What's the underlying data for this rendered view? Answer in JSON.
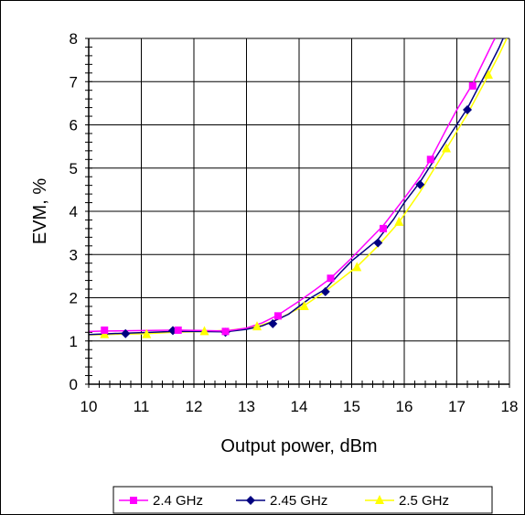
{
  "chart_data": {
    "type": "line",
    "title": "",
    "xlabel": "Output power, dBm",
    "ylabel": "EVM, %",
    "xlim": [
      10,
      18
    ],
    "ylim": [
      0,
      8
    ],
    "x_ticks": [
      "10",
      "11",
      "12",
      "13",
      "14",
      "15",
      "16",
      "17",
      "18"
    ],
    "y_ticks": [
      "0",
      "1",
      "2",
      "3",
      "4",
      "5",
      "6",
      "7",
      "8"
    ],
    "grid": true,
    "legend_position": "bottom",
    "series": [
      {
        "name": "2.4 GHz",
        "color": "#ff00ff",
        "marker": "square",
        "points": [
          [
            10.3,
            1.25
          ],
          [
            11.7,
            1.25
          ],
          [
            12.6,
            1.22
          ],
          [
            13.6,
            1.58
          ],
          [
            14.6,
            2.45
          ],
          [
            15.6,
            3.6
          ],
          [
            16.5,
            5.2
          ],
          [
            17.3,
            6.9
          ]
        ],
        "curve": [
          [
            10.0,
            1.22
          ],
          [
            10.3,
            1.23
          ],
          [
            11.0,
            1.24
          ],
          [
            11.7,
            1.25
          ],
          [
            12.2,
            1.24
          ],
          [
            12.6,
            1.23
          ],
          [
            13.0,
            1.3
          ],
          [
            13.3,
            1.42
          ],
          [
            13.6,
            1.6
          ],
          [
            14.0,
            1.92
          ],
          [
            14.3,
            2.18
          ],
          [
            14.6,
            2.45
          ],
          [
            15.0,
            2.92
          ],
          [
            15.3,
            3.3
          ],
          [
            15.6,
            3.67
          ],
          [
            16.0,
            4.3
          ],
          [
            16.3,
            4.8
          ],
          [
            16.5,
            5.2
          ],
          [
            16.8,
            5.9
          ],
          [
            17.0,
            6.35
          ],
          [
            17.3,
            6.95
          ],
          [
            17.5,
            7.45
          ],
          [
            17.7,
            7.95
          ],
          [
            17.73,
            8.0
          ]
        ]
      },
      {
        "name": "2.45 GHz",
        "color": "#000080",
        "marker": "diamond",
        "points": [
          [
            10.7,
            1.17
          ],
          [
            11.6,
            1.24
          ],
          [
            12.6,
            1.2
          ],
          [
            13.5,
            1.4
          ],
          [
            14.5,
            2.14
          ],
          [
            15.5,
            3.27
          ],
          [
            16.3,
            4.62
          ],
          [
            17.2,
            6.35
          ]
        ],
        "curve": [
          [
            10.0,
            1.15
          ],
          [
            10.7,
            1.18
          ],
          [
            11.2,
            1.2
          ],
          [
            11.6,
            1.22
          ],
          [
            12.1,
            1.22
          ],
          [
            12.6,
            1.21
          ],
          [
            13.0,
            1.27
          ],
          [
            13.3,
            1.35
          ],
          [
            13.5,
            1.45
          ],
          [
            13.8,
            1.62
          ],
          [
            14.0,
            1.8
          ],
          [
            14.2,
            1.98
          ],
          [
            14.5,
            2.2
          ],
          [
            14.8,
            2.6
          ],
          [
            15.0,
            2.85
          ],
          [
            15.2,
            3.05
          ],
          [
            15.5,
            3.35
          ],
          [
            15.8,
            3.82
          ],
          [
            16.0,
            4.2
          ],
          [
            16.3,
            4.68
          ],
          [
            16.6,
            5.25
          ],
          [
            16.9,
            5.82
          ],
          [
            17.2,
            6.38
          ],
          [
            17.4,
            6.85
          ],
          [
            17.6,
            7.3
          ],
          [
            17.8,
            7.78
          ],
          [
            17.88,
            8.0
          ]
        ]
      },
      {
        "name": "2.5 GHz",
        "color": "#ffff00",
        "marker": "triangle",
        "points": [
          [
            10.3,
            1.15
          ],
          [
            11.1,
            1.15
          ],
          [
            12.2,
            1.22
          ],
          [
            13.2,
            1.33
          ],
          [
            14.1,
            1.8
          ],
          [
            15.1,
            2.7
          ],
          [
            15.9,
            3.75
          ],
          [
            16.8,
            5.45
          ],
          [
            17.6,
            7.15
          ]
        ],
        "curve": [
          [
            10.0,
            1.14
          ],
          [
            10.3,
            1.15
          ],
          [
            11.1,
            1.17
          ],
          [
            11.6,
            1.2
          ],
          [
            12.2,
            1.22
          ],
          [
            12.7,
            1.25
          ],
          [
            13.2,
            1.33
          ],
          [
            13.6,
            1.5
          ],
          [
            14.1,
            1.82
          ],
          [
            14.5,
            2.15
          ],
          [
            15.1,
            2.72
          ],
          [
            15.5,
            3.2
          ],
          [
            15.9,
            3.75
          ],
          [
            16.3,
            4.45
          ],
          [
            16.8,
            5.45
          ],
          [
            17.2,
            6.25
          ],
          [
            17.6,
            7.15
          ],
          [
            17.8,
            7.62
          ],
          [
            17.95,
            8.0
          ]
        ]
      }
    ]
  }
}
